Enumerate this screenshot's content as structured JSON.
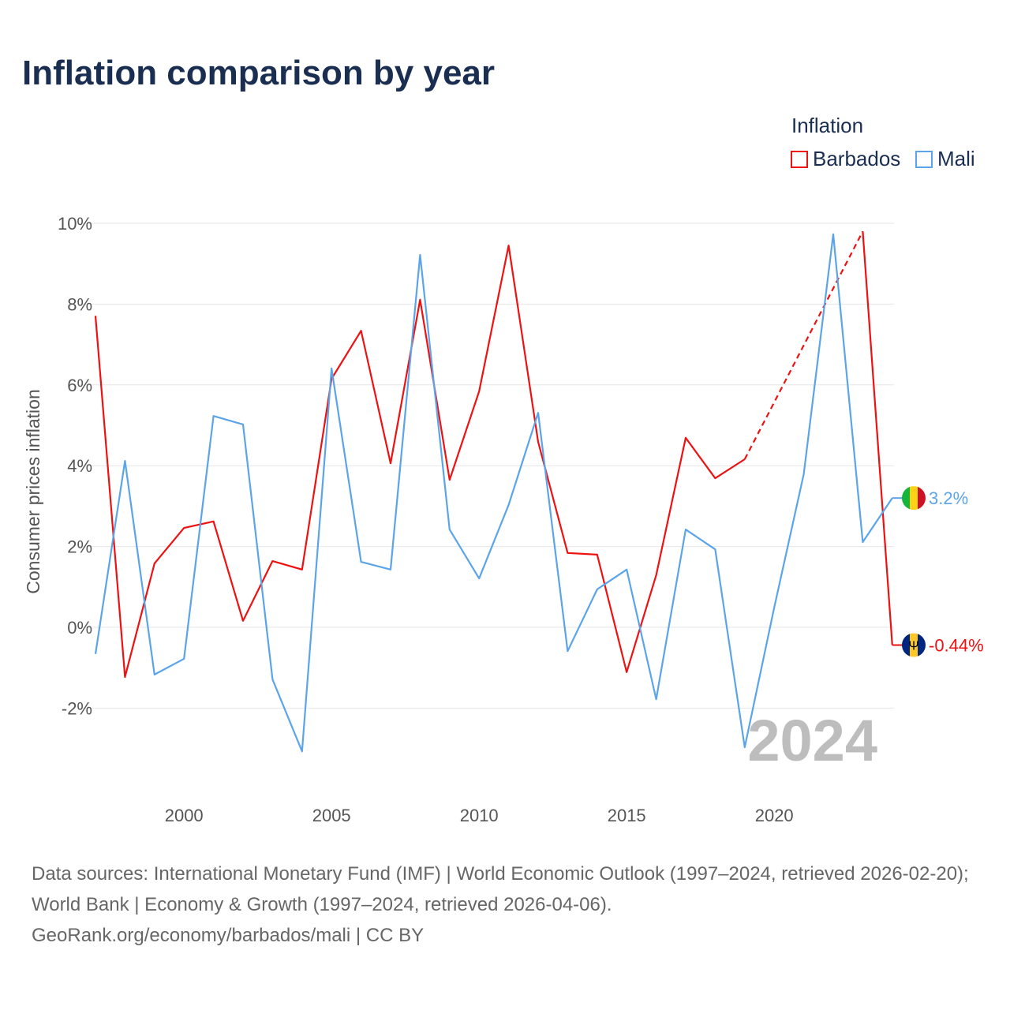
{
  "title": "Inflation comparison by year",
  "legend": {
    "title": "Inflation",
    "items": [
      "Barbados",
      "Mali"
    ]
  },
  "colors": {
    "Barbados": "#ee1111",
    "Mali": "#5ba4ea",
    "grid": "#e6e6e6",
    "watermark": "#bdbdbd"
  },
  "year_watermark": "2024",
  "source": {
    "line1": "Data sources: International Monetary Fund (IMF) | World Economic Outlook (1997–2024, retrieved 2026-02-20); World Bank | Economy & Growth (1997–2024, retrieved 2026-04-06).",
    "line2": "GeoRank.org/economy/barbados/mali | CC BY"
  },
  "chart_data": {
    "type": "line",
    "title": "Inflation comparison by year",
    "ylabel": "Consumer prices inflation",
    "xlabel": "",
    "xlim": [
      1997,
      2024
    ],
    "ylim": [
      -4,
      10
    ],
    "yticks": [
      -2,
      0,
      2,
      4,
      6,
      8,
      10
    ],
    "ytick_labels": [
      "-2%",
      "0%",
      "2%",
      "4%",
      "6%",
      "8%",
      "10%"
    ],
    "xticks": [
      2000,
      2005,
      2010,
      2015,
      2020
    ],
    "xtick_labels": [
      "2000",
      "2005",
      "2010",
      "2015",
      "2020"
    ],
    "x": [
      1997,
      1998,
      1999,
      2000,
      2001,
      2002,
      2003,
      2004,
      2005,
      2006,
      2007,
      2008,
      2009,
      2010,
      2011,
      2012,
      2013,
      2014,
      2015,
      2016,
      2017,
      2018,
      2019,
      2020,
      2021,
      2022,
      2023,
      2024
    ],
    "series": [
      {
        "name": "Barbados",
        "end_label": "-0.44%",
        "values": [
          7.71,
          -1.23,
          1.58,
          2.46,
          2.62,
          0.16,
          1.64,
          1.43,
          6.15,
          7.34,
          4.06,
          8.11,
          3.65,
          5.84,
          9.45,
          4.59,
          1.84,
          1.8,
          -1.11,
          1.29,
          4.69,
          3.69,
          4.16,
          null,
          null,
          null,
          9.8,
          -0.44
        ]
      },
      {
        "name": "Mali",
        "end_label": "3.2%",
        "values": [
          -0.66,
          4.12,
          -1.17,
          -0.78,
          5.23,
          5.02,
          -1.29,
          -3.07,
          6.41,
          1.62,
          1.43,
          9.22,
          2.42,
          1.21,
          3.03,
          5.31,
          -0.59,
          0.94,
          1.43,
          -1.78,
          2.42,
          1.93,
          -2.97,
          0.49,
          3.79,
          9.73,
          2.11,
          3.2
        ]
      }
    ],
    "grid": true,
    "legend_position": "top-right"
  }
}
